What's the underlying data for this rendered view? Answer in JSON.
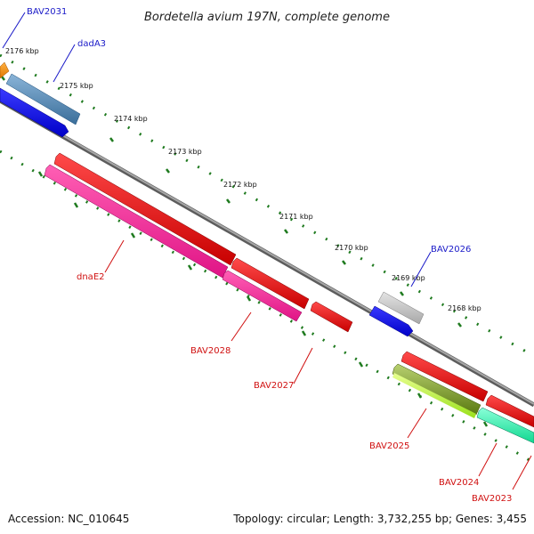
{
  "title": "Bordetella avium 197N, complete genome",
  "footer": {
    "accession": "Accession: NC_010645",
    "summary": "Topology: circular; Length: 3,732,255 bp; Genes: 3,455"
  },
  "colors": {
    "forward_label": "#1a1ac8",
    "reverse_label": "#d01010",
    "tick": "#1e7a1e",
    "backbone": "#808080"
  },
  "kbp_ticks": [
    "2176 kbp",
    "2175 kbp",
    "2174 kbp",
    "2173 kbp",
    "2172 kbp",
    "2171 kbp",
    "2170 kbp",
    "2169 kbp",
    "2168 kbp"
  ],
  "gene_labels": {
    "bav2031": "BAV2031",
    "dada3": "dadA3",
    "bav2026": "BAV2026",
    "dnae2": "dnaE2",
    "bav2028": "BAV2028",
    "bav2027": "BAV2027",
    "bav2025": "BAV2025",
    "bav2024": "BAV2024",
    "bav2023": "BAV2023"
  }
}
